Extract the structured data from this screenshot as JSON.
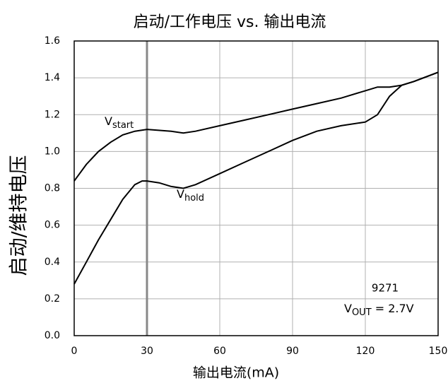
{
  "chart_data": {
    "type": "line",
    "title": "启动/工作电压 vs. 输出电流",
    "xlabel": "输出电流(mA)",
    "ylabel": "启动/维持电压",
    "xlim": [
      0,
      150
    ],
    "ylim": [
      0,
      1.6
    ],
    "xticks": [
      0,
      30,
      60,
      90,
      120,
      150
    ],
    "yticks": [
      {
        "value": 0,
        "label": "0.0"
      },
      0.2,
      0.4,
      0.6,
      0.8,
      {
        "value": 1,
        "label": "1.0"
      },
      1.2,
      1.4,
      1.6
    ],
    "grid": true,
    "vline": 30,
    "series": [
      {
        "label": {
          "main": "V",
          "sub": "start"
        },
        "color": "#000000",
        "x": [
          0,
          5,
          10,
          15,
          20,
          25,
          30,
          40,
          45,
          50,
          60,
          70,
          80,
          90,
          100,
          110,
          120,
          125,
          130,
          135,
          140,
          150
        ],
        "values": [
          0.84,
          0.93,
          1.0,
          1.05,
          1.09,
          1.11,
          1.12,
          1.11,
          1.1,
          1.11,
          1.14,
          1.17,
          1.2,
          1.23,
          1.26,
          1.29,
          1.33,
          1.35,
          1.35,
          1.36,
          1.38,
          1.43
        ]
      },
      {
        "label": {
          "main": "V",
          "sub": "hold"
        },
        "color": "#000000",
        "x": [
          0,
          5,
          10,
          15,
          20,
          25,
          28,
          30,
          35,
          40,
          45,
          50,
          60,
          70,
          80,
          90,
          100,
          110,
          120,
          125,
          130,
          135,
          140,
          150
        ],
        "values": [
          0.28,
          0.4,
          0.52,
          0.63,
          0.74,
          0.82,
          0.84,
          0.84,
          0.83,
          0.81,
          0.8,
          0.82,
          0.88,
          0.94,
          1.0,
          1.06,
          1.11,
          1.14,
          1.16,
          1.2,
          1.3,
          1.36,
          1.38,
          1.43
        ]
      }
    ],
    "note": {
      "line1": "9271",
      "line2": {
        "main": "V",
        "sub": "OUT",
        "rest": " = 2.7V"
      }
    }
  }
}
